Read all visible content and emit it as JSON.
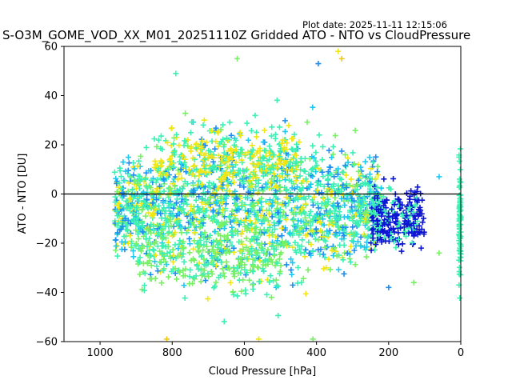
{
  "plot_date": "Plot date: 2025-11-11 12:15:06",
  "chart_data": {
    "type": "scatter",
    "title": "S-O3M_GOME_VOD_XX_M01_20251110Z Gridded ATO - NTO vs CloudPressure",
    "xlabel": "Cloud Pressure [hPa]",
    "ylabel": "ATO - NTO [DU]",
    "xlim": [
      1100,
      0
    ],
    "ylim": [
      -60,
      60
    ],
    "x_inverted": true,
    "x_ticks": [
      1000,
      800,
      600,
      400,
      200,
      0
    ],
    "y_ticks": [
      -60,
      -40,
      -20,
      0,
      20,
      40,
      60
    ],
    "reference_line_y": 0,
    "marker": "+",
    "grid": false,
    "colors": {
      "dark_blue": "#0a14d2",
      "blue": "#1e8cf0",
      "cyan": "#1ec8f0",
      "aquamarine": "#3cf0b4",
      "green_light": "#78f064",
      "yellow": "#f0e614",
      "gold": "#f0c814"
    },
    "clusters": [
      {
        "name": "main_body",
        "x_range": [
          960,
          220
        ],
        "y_center": -5,
        "y_spread": 20,
        "color": "aquamarine"
      },
      {
        "name": "upper_yellow",
        "x_range": [
          850,
          450
        ],
        "y_center": 15,
        "y_spread": 8,
        "color": "yellow"
      },
      {
        "name": "lower_green",
        "x_range": [
          900,
          500
        ],
        "y_center": -25,
        "y_spread": 10,
        "color": "green_light"
      },
      {
        "name": "right_tail",
        "x_range": [
          250,
          100
        ],
        "y_center": -10,
        "y_spread": 8,
        "color": "dark_blue"
      },
      {
        "name": "zero_column",
        "x_range": [
          5,
          0
        ],
        "y_center": -10,
        "y_spread": 18,
        "color": "aquamarine"
      }
    ],
    "outliers": [
      {
        "x": 620,
        "y": 55,
        "color": "green_light"
      },
      {
        "x": 790,
        "y": 49,
        "color": "aquamarine"
      },
      {
        "x": 395,
        "y": 53,
        "color": "blue"
      },
      {
        "x": 340,
        "y": 58,
        "color": "yellow"
      },
      {
        "x": 330,
        "y": 55,
        "color": "gold"
      },
      {
        "x": 815,
        "y": -59,
        "color": "gold"
      },
      {
        "x": 560,
        "y": -59,
        "color": "yellow"
      },
      {
        "x": 410,
        "y": -59,
        "color": "green_light"
      },
      {
        "x": 60,
        "y": -24,
        "color": "green_light"
      },
      {
        "x": 200,
        "y": -38,
        "color": "blue"
      },
      {
        "x": 130,
        "y": -36,
        "color": "green_light"
      },
      {
        "x": 60,
        "y": 7,
        "color": "cyan"
      }
    ]
  }
}
